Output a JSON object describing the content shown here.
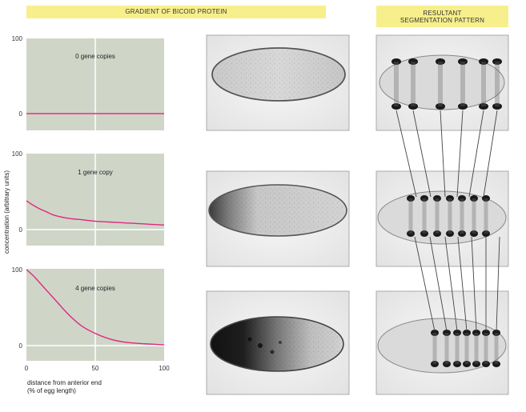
{
  "header": {
    "left_title": "GRADIENT OF BICOID PROTEIN",
    "right_title_line1": "RESULTANT",
    "right_title_line2": "SEGMENTATION PATTERN"
  },
  "colors": {
    "panel_bg": "#cfd6c8",
    "curve": "#e0287e",
    "banner": "#f7ef8c"
  },
  "chart_data": {
    "type": "line",
    "ylabel": "concentration (arbitrary units)",
    "xlabel_line1": "distance from anterior end",
    "xlabel_line2": "(% of egg length)",
    "xlim": [
      0,
      100
    ],
    "ylim": [
      0,
      100
    ],
    "xticks": [
      "0",
      "50",
      "100"
    ],
    "panels": [
      {
        "label": "0 gene copies",
        "yticks": [
          "0",
          "100"
        ],
        "x": [
          0,
          10,
          20,
          30,
          40,
          50,
          60,
          70,
          80,
          90,
          100
        ],
        "y": [
          0,
          0,
          0,
          0,
          0,
          0,
          0,
          0,
          0,
          0,
          0
        ]
      },
      {
        "label": "1 gene copy",
        "yticks": [
          "0",
          "100"
        ],
        "x": [
          0,
          5,
          10,
          15,
          20,
          30,
          40,
          50,
          60,
          70,
          80,
          90,
          100
        ],
        "y": [
          38,
          32,
          27,
          23,
          19,
          15,
          13,
          11,
          10,
          9,
          8,
          7,
          6
        ]
      },
      {
        "label": "4 gene copies",
        "yticks": [
          "0",
          "100"
        ],
        "x": [
          0,
          5,
          10,
          20,
          30,
          40,
          50,
          60,
          70,
          80,
          90,
          100
        ],
        "y": [
          100,
          92,
          82,
          62,
          42,
          26,
          16,
          9,
          5,
          3,
          2,
          1
        ]
      }
    ]
  }
}
